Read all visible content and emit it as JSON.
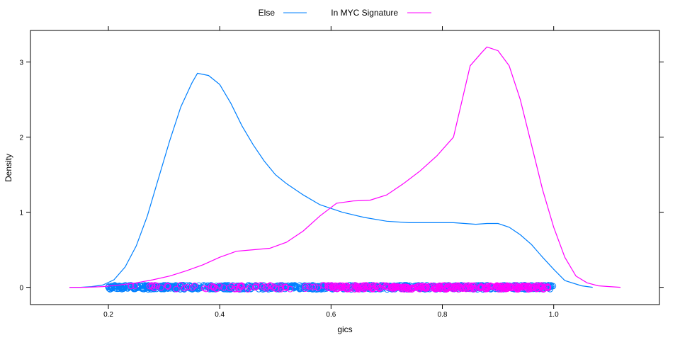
{
  "chart_data": {
    "type": "line",
    "title": "",
    "xlabel": "gics",
    "ylabel": "Density",
    "xlim": [
      0.06,
      1.19
    ],
    "ylim": [
      -0.23,
      3.42
    ],
    "x_ticks": [
      0.2,
      0.4,
      0.6,
      0.8,
      1.0
    ],
    "x_tick_labels": [
      "0.2",
      "0.4",
      "0.6",
      "0.8",
      "1.0"
    ],
    "y_ticks": [
      0,
      1,
      2,
      3
    ],
    "y_tick_labels": [
      "0",
      "1",
      "2",
      "3"
    ],
    "grid": false,
    "legend_position": "top",
    "series": [
      {
        "name": "Else",
        "color": "#0080ff",
        "x": [
          0.13,
          0.15,
          0.17,
          0.19,
          0.21,
          0.23,
          0.25,
          0.27,
          0.29,
          0.31,
          0.33,
          0.35,
          0.36,
          0.38,
          0.4,
          0.42,
          0.44,
          0.46,
          0.48,
          0.5,
          0.52,
          0.55,
          0.58,
          0.62,
          0.66,
          0.7,
          0.74,
          0.78,
          0.82,
          0.84,
          0.86,
          0.88,
          0.9,
          0.92,
          0.94,
          0.96,
          0.98,
          1.0,
          1.02,
          1.05,
          1.07
        ],
        "y": [
          0.0,
          0.0,
          0.01,
          0.03,
          0.1,
          0.27,
          0.55,
          0.95,
          1.45,
          1.95,
          2.4,
          2.72,
          2.85,
          2.82,
          2.7,
          2.45,
          2.15,
          1.9,
          1.68,
          1.5,
          1.38,
          1.23,
          1.1,
          1.0,
          0.93,
          0.88,
          0.86,
          0.86,
          0.86,
          0.85,
          0.84,
          0.85,
          0.85,
          0.8,
          0.7,
          0.57,
          0.4,
          0.24,
          0.09,
          0.02,
          0.0
        ]
      },
      {
        "name": "In MYC Signature",
        "color": "#ff00ff",
        "x": [
          0.13,
          0.16,
          0.19,
          0.22,
          0.25,
          0.28,
          0.31,
          0.34,
          0.37,
          0.4,
          0.43,
          0.46,
          0.49,
          0.52,
          0.55,
          0.58,
          0.61,
          0.64,
          0.67,
          0.7,
          0.73,
          0.76,
          0.79,
          0.82,
          0.85,
          0.87,
          0.88,
          0.9,
          0.92,
          0.94,
          0.96,
          0.98,
          1.0,
          1.02,
          1.04,
          1.06,
          1.08,
          1.1,
          1.12
        ],
        "y": [
          0.0,
          0.0,
          0.01,
          0.03,
          0.06,
          0.1,
          0.15,
          0.22,
          0.3,
          0.4,
          0.48,
          0.5,
          0.52,
          0.6,
          0.75,
          0.95,
          1.12,
          1.15,
          1.16,
          1.23,
          1.38,
          1.55,
          1.75,
          2.0,
          2.95,
          3.12,
          3.2,
          3.15,
          2.95,
          2.5,
          1.9,
          1.3,
          0.8,
          0.4,
          0.15,
          0.06,
          0.02,
          0.01,
          0.0
        ]
      }
    ],
    "rug": {
      "Else": {
        "from": 0.2,
        "to": 1.0
      },
      "In MYC Signature": {
        "from": 0.24,
        "to": 0.99
      }
    }
  }
}
